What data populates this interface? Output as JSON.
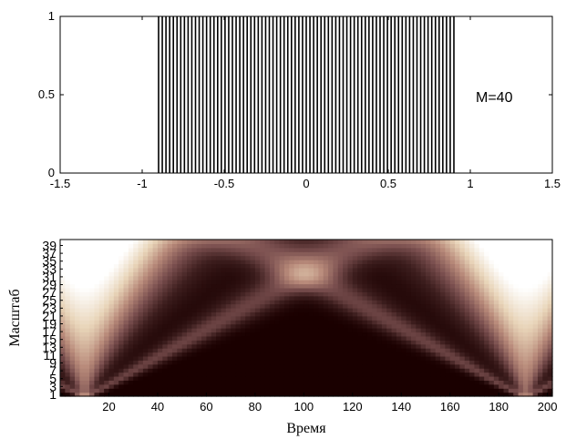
{
  "chart_data": [
    {
      "type": "line",
      "annotation": "M=40",
      "xlim": [
        -1.5,
        1.5
      ],
      "ylim": [
        0,
        1
      ],
      "xticks": [
        "-1.5",
        "-1",
        "-0.5",
        "0",
        "0.5",
        "1",
        "1.5"
      ],
      "yticks": [
        "0",
        "0.5",
        "1"
      ],
      "signal": {
        "x_start": -0.9,
        "x_end": 0.9,
        "pulse_count": 81,
        "amplitude": 1
      },
      "colors": {
        "pulses": "#000000",
        "edge_line": "#0000ff"
      }
    },
    {
      "type": "heatmap",
      "xlabel": "Время",
      "ylabel": "Масштаб",
      "xlim": [
        0,
        202
      ],
      "ylim": [
        0,
        40
      ],
      "xticks": [
        "20",
        "40",
        "60",
        "80",
        "100",
        "120",
        "140",
        "160",
        "180",
        "200"
      ],
      "yticks": [
        "1",
        "3",
        "5",
        "7",
        "9",
        "11",
        "13",
        "15",
        "17",
        "19",
        "21",
        "23",
        "25",
        "27",
        "29",
        "31",
        "33",
        "35",
        "37",
        "39"
      ],
      "bright_columns": [
        10,
        191
      ],
      "colormap": [
        "#1a0000",
        "#3d1e1e",
        "#7a4f4f",
        "#b88a7a",
        "#e8d4b8",
        "#ffffff"
      ]
    }
  ]
}
